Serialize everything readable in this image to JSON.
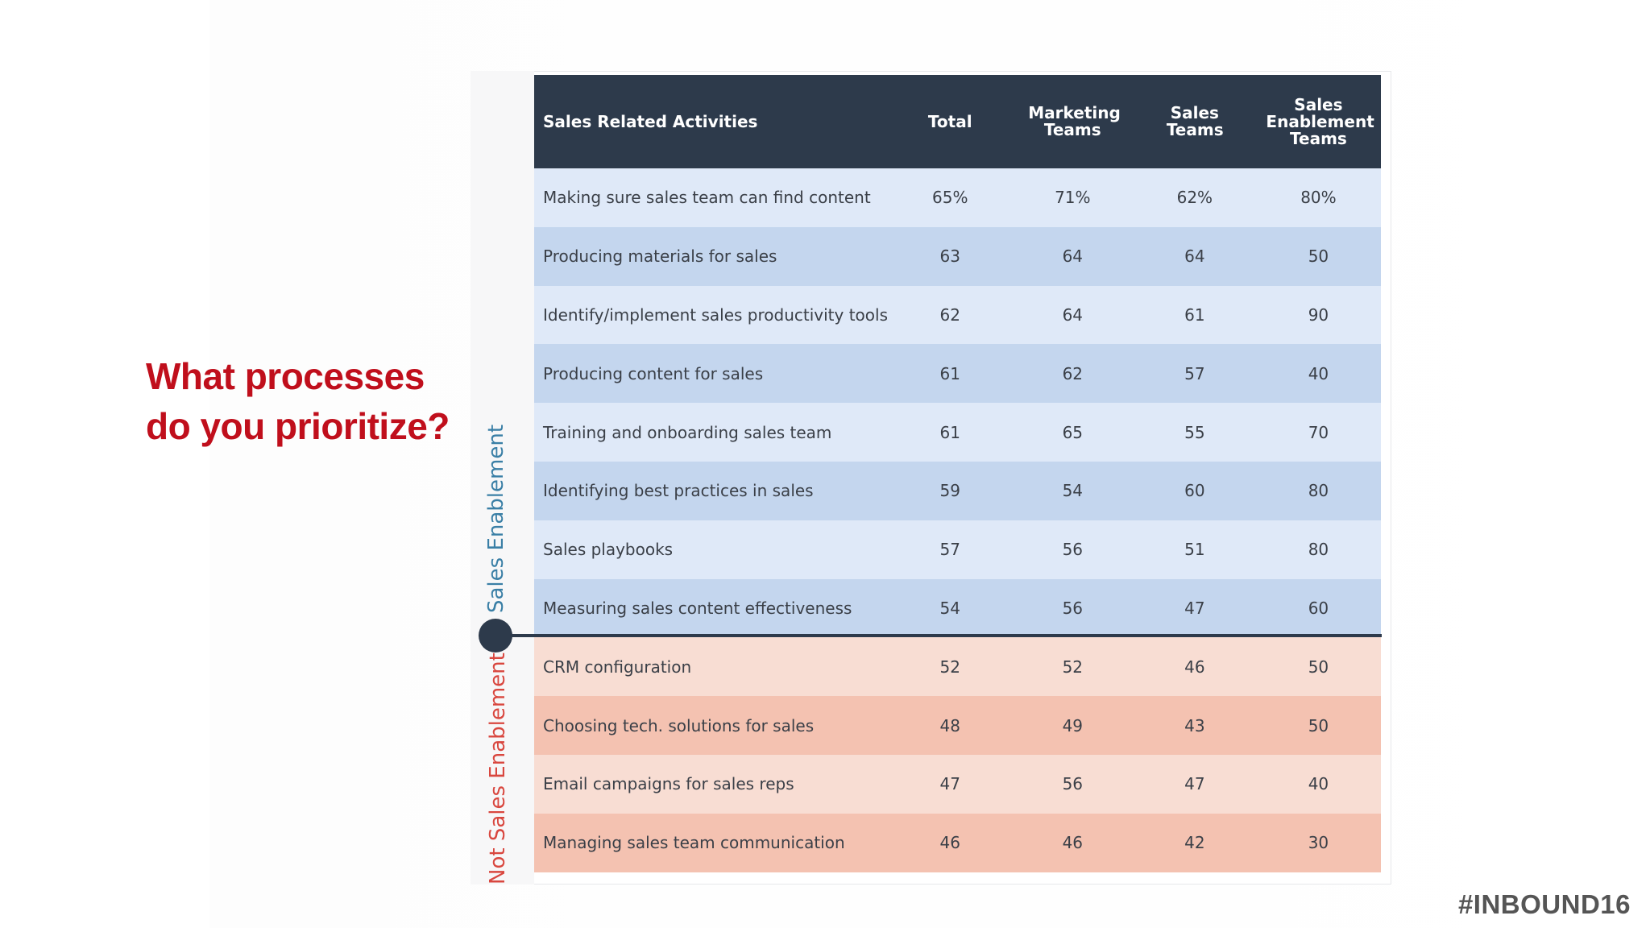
{
  "slide": {
    "question_line1": "What processes",
    "question_line2": "do you prioritize?",
    "hashtag": "#INBOUND16"
  },
  "chart_data": {
    "type": "table",
    "columns": [
      "Sales Related Activities",
      "Total",
      "Marketing Teams",
      "Sales Teams",
      "Sales Enablement Teams"
    ],
    "groups": [
      {
        "label": "Sales Enablement",
        "rows": [
          {
            "activity": "Making sure sales team can find content",
            "values": [
              "65%",
              "71%",
              "62%",
              "80%"
            ]
          },
          {
            "activity": "Producing materials for sales",
            "values": [
              "63",
              "64",
              "64",
              "50"
            ]
          },
          {
            "activity": "Identify/implement sales productivity tools",
            "values": [
              "62",
              "64",
              "61",
              "90"
            ]
          },
          {
            "activity": "Producing content for sales",
            "values": [
              "61",
              "62",
              "57",
              "40"
            ]
          },
          {
            "activity": "Training and onboarding sales team",
            "values": [
              "61",
              "65",
              "55",
              "70"
            ]
          },
          {
            "activity": "Identifying best practices in sales",
            "values": [
              "59",
              "54",
              "60",
              "80"
            ]
          },
          {
            "activity": "Sales playbooks",
            "values": [
              "57",
              "56",
              "51",
              "80"
            ]
          },
          {
            "activity": "Measuring sales content effectiveness",
            "values": [
              "54",
              "56",
              "47",
              "60"
            ]
          }
        ]
      },
      {
        "label": "Not Sales Enablement",
        "rows": [
          {
            "activity": "CRM configuration",
            "values": [
              "52",
              "52",
              "46",
              "50"
            ]
          },
          {
            "activity": "Choosing tech. solutions for sales",
            "values": [
              "48",
              "49",
              "43",
              "50"
            ]
          },
          {
            "activity": "Email campaigns for sales reps",
            "values": [
              "47",
              "56",
              "47",
              "40"
            ]
          },
          {
            "activity": "Managing sales team communication",
            "values": [
              "46",
              "46",
              "42",
              "30"
            ]
          }
        ]
      }
    ]
  },
  "colors": {
    "header_bg": "#2d3a4b",
    "se_light": "#dfe9f8",
    "se_dark": "#c4d6ee",
    "nse_light": "#f8ddd3",
    "nse_dark": "#f4c2b1",
    "question": "#c00f1c",
    "se_label": "#3a7fa6",
    "nse_label": "#d9473f"
  }
}
